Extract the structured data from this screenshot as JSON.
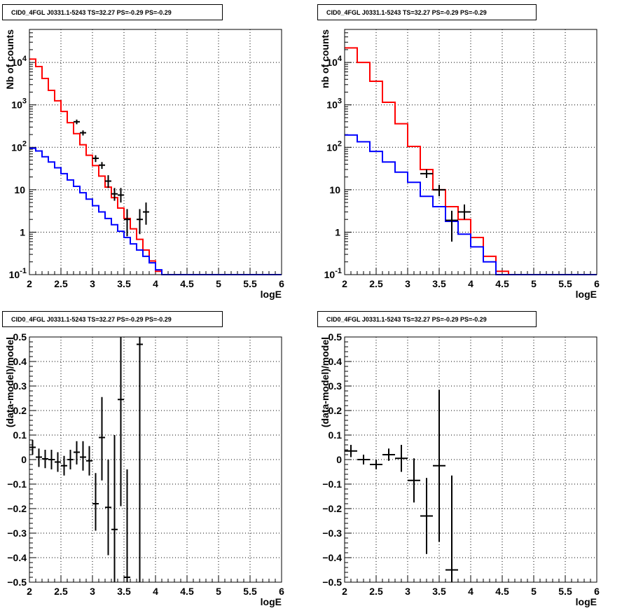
{
  "colors": {
    "data": "#000000",
    "model": "#ff0000",
    "background_component": "#0000ff"
  },
  "chart_data": [
    {
      "type": "line",
      "title": "CID0_4FGL J0331.1-5243 TS=32.27 PS=-0.29 PS=-0.29",
      "xlabel": "logE",
      "ylabel": "Nb of counts",
      "xlim": [
        2,
        6
      ],
      "ylim": [
        0.1,
        60000
      ],
      "log_y": true,
      "grid": true,
      "xticks": [
        "2",
        "2.5",
        "3",
        "3.5",
        "4",
        "4.5",
        "5",
        "5.5",
        "6"
      ],
      "yticks": [
        "10^-1",
        "1",
        "10",
        "10^2",
        "10^3",
        "10^4"
      ],
      "series": [
        {
          "style": "step",
          "color": "#ff0000",
          "bin_edges": [
            2,
            2.1,
            2.2,
            2.3,
            2.4,
            2.5,
            2.6,
            2.7,
            2.8,
            2.9,
            3.0,
            3.1,
            3.2,
            3.3,
            3.4,
            3.5,
            3.6,
            3.7,
            3.8,
            3.9,
            4.0,
            4.1,
            4.2,
            4.3,
            4.4,
            4.5,
            4.6,
            4.7,
            4.8,
            4.9,
            5.0,
            5.1,
            5.2,
            5.3,
            5.4,
            5.5,
            5.6,
            5.7,
            5.8,
            5.9,
            6.0
          ],
          "values": [
            12000,
            8000,
            4200,
            2200,
            1250,
            700,
            380,
            210,
            115,
            65,
            37,
            21,
            11.5,
            6.5,
            3.7,
            2.1,
            1.2,
            0.68,
            0.38,
            0.21,
            0.12,
            0.1,
            0.1,
            0.1,
            0.1,
            0.1,
            0.1,
            0.1,
            0.1,
            0.1,
            0.1,
            0.1,
            0.1,
            0.1,
            0.1,
            0.1,
            0.1,
            0.1,
            0.1,
            0.1
          ]
        },
        {
          "style": "step",
          "color": "#0000ff",
          "bin_edges": [
            2,
            2.1,
            2.2,
            2.3,
            2.4,
            2.5,
            2.6,
            2.7,
            2.8,
            2.9,
            3.0,
            3.1,
            3.2,
            3.3,
            3.4,
            3.5,
            3.6,
            3.7,
            3.8,
            3.9,
            4.0,
            4.1,
            4.2,
            4.3,
            4.4,
            4.5,
            4.6,
            4.7,
            4.8,
            4.9,
            5.0,
            5.1,
            5.2,
            5.3,
            5.4,
            5.5,
            5.6,
            5.7,
            5.8,
            5.9,
            6.0
          ],
          "values": [
            95,
            82,
            60,
            45,
            33,
            24,
            17,
            12,
            8.5,
            6,
            4.2,
            3,
            2.1,
            1.5,
            1.05,
            0.75,
            0.53,
            0.38,
            0.27,
            0.19,
            0.13,
            0.1,
            0.1,
            0.1,
            0.1,
            0.1,
            0.1,
            0.1,
            0.1,
            0.1,
            0.1,
            0.1,
            0.1,
            0.1,
            0.1,
            0.1,
            0.1,
            0.1,
            0.1,
            0.1
          ]
        },
        {
          "style": "errorbar",
          "color": "#000000",
          "x": [
            2.75,
            2.85,
            3.05,
            3.15,
            3.25,
            3.35,
            3.45,
            3.55,
            3.75,
            3.85
          ],
          "y": [
            400,
            220,
            55,
            38,
            16,
            8,
            7.5,
            2,
            2,
            3
          ],
          "xerr": 0.05,
          "ylow": [
            350,
            190,
            45,
            31,
            11,
            5.5,
            5,
            0.8,
            0.9,
            1.5
          ],
          "yhigh": [
            450,
            250,
            65,
            45,
            22,
            11,
            11,
            3.5,
            3.5,
            5
          ]
        }
      ]
    },
    {
      "type": "line",
      "title": "CID0_4FGL J0331.1-5243 TS=32.27 PS=-0.29 PS=-0.29",
      "xlabel": "logE",
      "ylabel": "nb of counts",
      "xlim": [
        2,
        6
      ],
      "ylim": [
        0.1,
        60000
      ],
      "log_y": true,
      "grid": true,
      "xticks": [
        "2",
        "2.5",
        "3",
        "3.5",
        "4",
        "4.5",
        "5",
        "5.5",
        "6"
      ],
      "yticks": [
        "10^-1",
        "1",
        "10",
        "10^2",
        "10^3",
        "10^4"
      ],
      "series": [
        {
          "style": "step",
          "color": "#ff0000",
          "bin_edges": [
            2,
            2.2,
            2.4,
            2.6,
            2.8,
            3.0,
            3.2,
            3.4,
            3.6,
            3.8,
            4.0,
            4.2,
            4.4,
            4.6,
            4.8,
            5.0,
            5.2,
            5.4,
            5.6,
            5.8,
            6.0
          ],
          "values": [
            22000,
            10000,
            3600,
            1150,
            360,
            105,
            30,
            10,
            4,
            2,
            0.75,
            0.27,
            0.12,
            0.1,
            0.1,
            0.1,
            0.1,
            0.1,
            0.1,
            0.1
          ]
        },
        {
          "style": "step",
          "color": "#0000ff",
          "bin_edges": [
            2,
            2.2,
            2.4,
            2.6,
            2.8,
            3.0,
            3.2,
            3.4,
            3.6,
            3.8,
            4.0,
            4.2,
            4.4,
            4.6,
            4.8,
            5.0,
            5.2,
            5.4,
            5.6,
            5.8,
            6.0
          ],
          "values": [
            195,
            135,
            80,
            45,
            26,
            15,
            7,
            4,
            1.8,
            0.9,
            0.45,
            0.2,
            0.1,
            0.1,
            0.1,
            0.1,
            0.1,
            0.1,
            0.1,
            0.1
          ]
        },
        {
          "style": "errorbar",
          "color": "#000000",
          "x": [
            3.3,
            3.5,
            3.7,
            3.9
          ],
          "y": [
            24,
            10,
            1.9,
            3
          ],
          "xerr": 0.1,
          "ylow": [
            19,
            7,
            0.6,
            2
          ],
          "yhigh": [
            30,
            13,
            3.2,
            4.5
          ]
        }
      ]
    },
    {
      "type": "scatter",
      "title": "CID0_4FGL J0331.1-5243 TS=32.27 PS=-0.29 PS=-0.29",
      "xlabel": "logE",
      "ylabel": "(data-model)/model",
      "xlim": [
        2,
        6
      ],
      "ylim": [
        -0.5,
        0.5
      ],
      "grid": true,
      "xticks": [
        "2",
        "2.5",
        "3",
        "3.5",
        "4",
        "4.5",
        "5",
        "5.5",
        "6"
      ],
      "yticks": [
        "−0.5",
        "−0.4",
        "−0.3",
        "−0.2",
        "−0.1",
        "0",
        "0.1",
        "0.2",
        "0.3",
        "0.4",
        "0.5"
      ],
      "series": [
        {
          "style": "errorbar",
          "color": "#000000",
          "xerr": 0.05,
          "x": [
            2.05,
            2.15,
            2.25,
            2.35,
            2.45,
            2.55,
            2.65,
            2.75,
            2.85,
            2.95,
            3.05,
            3.15,
            3.25,
            3.35,
            3.45,
            3.55,
            3.75
          ],
          "y": [
            0.05,
            0.01,
            0.003,
            0.0,
            -0.01,
            -0.025,
            0.0,
            0.03,
            0.01,
            -0.005,
            -0.18,
            0.09,
            -0.195,
            -0.285,
            0.245,
            -0.48,
            0.47
          ],
          "ylow": [
            0.02,
            -0.03,
            -0.035,
            -0.04,
            -0.05,
            -0.065,
            -0.04,
            -0.02,
            -0.045,
            -0.065,
            -0.29,
            -0.085,
            -0.39,
            -0.5,
            -0.19,
            -0.5,
            -0.5
          ],
          "yhigh": [
            0.08,
            0.045,
            0.04,
            0.04,
            0.03,
            0.015,
            0.04,
            0.075,
            0.075,
            0.055,
            -0.055,
            0.255,
            -0.0,
            0.1,
            0.5,
            -0.04,
            0.5
          ]
        }
      ]
    },
    {
      "type": "scatter",
      "title": "CID0_4FGL J0331.1-5243 TS=32.27 PS=-0.29 PS=-0.29",
      "xlabel": "logE",
      "ylabel": "(data-model)/model",
      "xlim": [
        2,
        6
      ],
      "ylim": [
        -0.5,
        0.5
      ],
      "grid": true,
      "xticks": [
        "2",
        "2.5",
        "3",
        "3.5",
        "4",
        "4.5",
        "5",
        "5.5",
        "6"
      ],
      "yticks": [
        "−0.5",
        "−0.4",
        "−0.3",
        "−0.2",
        "−0.1",
        "0",
        "0.1",
        "0.2",
        "0.3",
        "0.4",
        "0.5"
      ],
      "series": [
        {
          "style": "errorbar",
          "color": "#000000",
          "xerr": 0.1,
          "x": [
            2.1,
            2.3,
            2.5,
            2.7,
            2.9,
            3.1,
            3.3,
            3.5,
            3.7
          ],
          "y": [
            0.035,
            0.0,
            -0.02,
            0.02,
            0.005,
            -0.085,
            -0.23,
            -0.025,
            -0.45
          ],
          "ylow": [
            0.01,
            -0.02,
            -0.04,
            -0.005,
            -0.05,
            -0.175,
            -0.385,
            -0.335,
            -0.5
          ],
          "yhigh": [
            0.06,
            0.02,
            0.0,
            0.045,
            0.06,
            0.005,
            -0.075,
            0.285,
            -0.065
          ]
        }
      ]
    }
  ]
}
